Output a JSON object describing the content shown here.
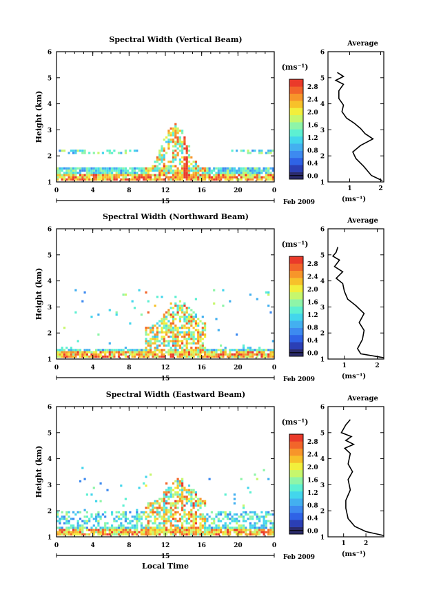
{
  "figure": {
    "date_label": "Feb 2009",
    "bottom_xlabel": "Local Time",
    "colors": [
      "#2b2b6b",
      "#2b3fb5",
      "#2f63e6",
      "#3d8af0",
      "#43b0f0",
      "#43d6ec",
      "#5df0d2",
      "#8ef5a8",
      "#c6f76d",
      "#f2ef3c",
      "#f7c12a",
      "#f7952a",
      "#f2652a",
      "#ea3a2a"
    ]
  },
  "chart_data": [
    {
      "type": "heatmap",
      "title": "Spectral Width (Vertical Beam)",
      "ylabel": "Height (km)",
      "unit_label": "(ms⁻¹)",
      "x_ticks": [
        "0",
        "4",
        "8",
        "12",
        "16",
        "20",
        "0"
      ],
      "day_label": "15",
      "xlim": [
        0,
        24
      ],
      "ylim": [
        1,
        6
      ],
      "y_ticks": [
        "1",
        "2",
        "3",
        "4",
        "5",
        "6"
      ],
      "colorbar": {
        "ticks": [
          "0.0",
          "0.4",
          "0.8",
          "1.2",
          "1.6",
          "2.0",
          "2.4",
          "2.8"
        ],
        "range": [
          0,
          2.8
        ]
      },
      "average_profile": {
        "title": "Average",
        "xlabel": "(ms⁻¹)",
        "x_ticks": [
          "1",
          "2"
        ],
        "xlim": [
          0.3,
          2.1
        ],
        "points": [
          [
            2.05,
            1.05
          ],
          [
            1.7,
            1.25
          ],
          [
            1.45,
            1.6
          ],
          [
            1.2,
            1.9
          ],
          [
            1.1,
            2.15
          ],
          [
            1.35,
            2.4
          ],
          [
            1.75,
            2.65
          ],
          [
            1.5,
            2.85
          ],
          [
            1.35,
            3.05
          ],
          [
            1.15,
            3.25
          ],
          [
            0.9,
            3.45
          ],
          [
            0.75,
            3.7
          ],
          [
            0.8,
            3.95
          ],
          [
            0.65,
            4.2
          ],
          [
            0.65,
            4.5
          ],
          [
            0.8,
            4.75
          ],
          [
            0.55,
            4.9
          ],
          [
            0.8,
            5.05
          ],
          [
            0.6,
            5.2
          ]
        ]
      }
    },
    {
      "type": "heatmap",
      "title": "Spectral Width (Northward Beam)",
      "ylabel": "Height (km)",
      "unit_label": "(ms⁻¹)",
      "x_ticks": [
        "0",
        "4",
        "8",
        "12",
        "16",
        "20",
        "0"
      ],
      "day_label": "15",
      "xlim": [
        0,
        24
      ],
      "ylim": [
        1,
        6
      ],
      "y_ticks": [
        "1",
        "2",
        "3",
        "4",
        "5",
        "6"
      ],
      "colorbar": {
        "ticks": [
          "0.0",
          "0.4",
          "0.8",
          "1.2",
          "1.6",
          "2.0",
          "2.4",
          "2.8"
        ],
        "range": [
          0,
          2.8
        ]
      },
      "average_profile": {
        "title": "Average",
        "xlabel": "(ms⁻¹)",
        "x_ticks": [
          "1",
          "2"
        ],
        "xlim": [
          0.5,
          2.2
        ],
        "points": [
          [
            2.2,
            1.05
          ],
          [
            1.5,
            1.2
          ],
          [
            1.4,
            1.4
          ],
          [
            1.55,
            1.75
          ],
          [
            1.6,
            2.1
          ],
          [
            1.45,
            2.4
          ],
          [
            1.6,
            2.75
          ],
          [
            1.35,
            3.05
          ],
          [
            1.1,
            3.3
          ],
          [
            1.0,
            3.6
          ],
          [
            0.95,
            3.9
          ],
          [
            0.75,
            4.1
          ],
          [
            0.95,
            4.35
          ],
          [
            0.7,
            4.55
          ],
          [
            0.85,
            4.8
          ],
          [
            0.65,
            4.95
          ],
          [
            0.75,
            5.1
          ],
          [
            0.8,
            5.3
          ]
        ]
      }
    },
    {
      "type": "heatmap",
      "title": "Spectral Width (Eastward Beam)",
      "ylabel": "Height (km)",
      "unit_label": "(ms⁻¹)",
      "x_ticks": [
        "0",
        "4",
        "8",
        "12",
        "16",
        "20",
        "0"
      ],
      "day_label": "15",
      "xlim": [
        0,
        24
      ],
      "ylim": [
        1,
        6
      ],
      "y_ticks": [
        "1",
        "2",
        "3",
        "4",
        "5",
        "6"
      ],
      "colorbar": {
        "ticks": [
          "0.0",
          "0.4",
          "0.8",
          "1.2",
          "1.6",
          "2.0",
          "2.4",
          "2.8"
        ],
        "range": [
          0,
          2.8
        ]
      },
      "average_profile": {
        "title": "Average",
        "xlabel": "(ms⁻¹)",
        "x_ticks": [
          "1",
          "2"
        ],
        "xlim": [
          0.3,
          2.8
        ],
        "points": [
          [
            2.8,
            1.05
          ],
          [
            2.0,
            1.2
          ],
          [
            1.5,
            1.4
          ],
          [
            1.2,
            1.7
          ],
          [
            1.1,
            2.1
          ],
          [
            1.1,
            2.4
          ],
          [
            1.3,
            2.8
          ],
          [
            1.2,
            3.2
          ],
          [
            1.4,
            3.5
          ],
          [
            1.2,
            3.8
          ],
          [
            1.3,
            4.2
          ],
          [
            1.05,
            4.4
          ],
          [
            1.45,
            4.55
          ],
          [
            1.1,
            4.7
          ],
          [
            1.35,
            4.85
          ],
          [
            0.9,
            5.0
          ],
          [
            1.1,
            5.3
          ],
          [
            1.3,
            5.5
          ]
        ]
      }
    }
  ]
}
